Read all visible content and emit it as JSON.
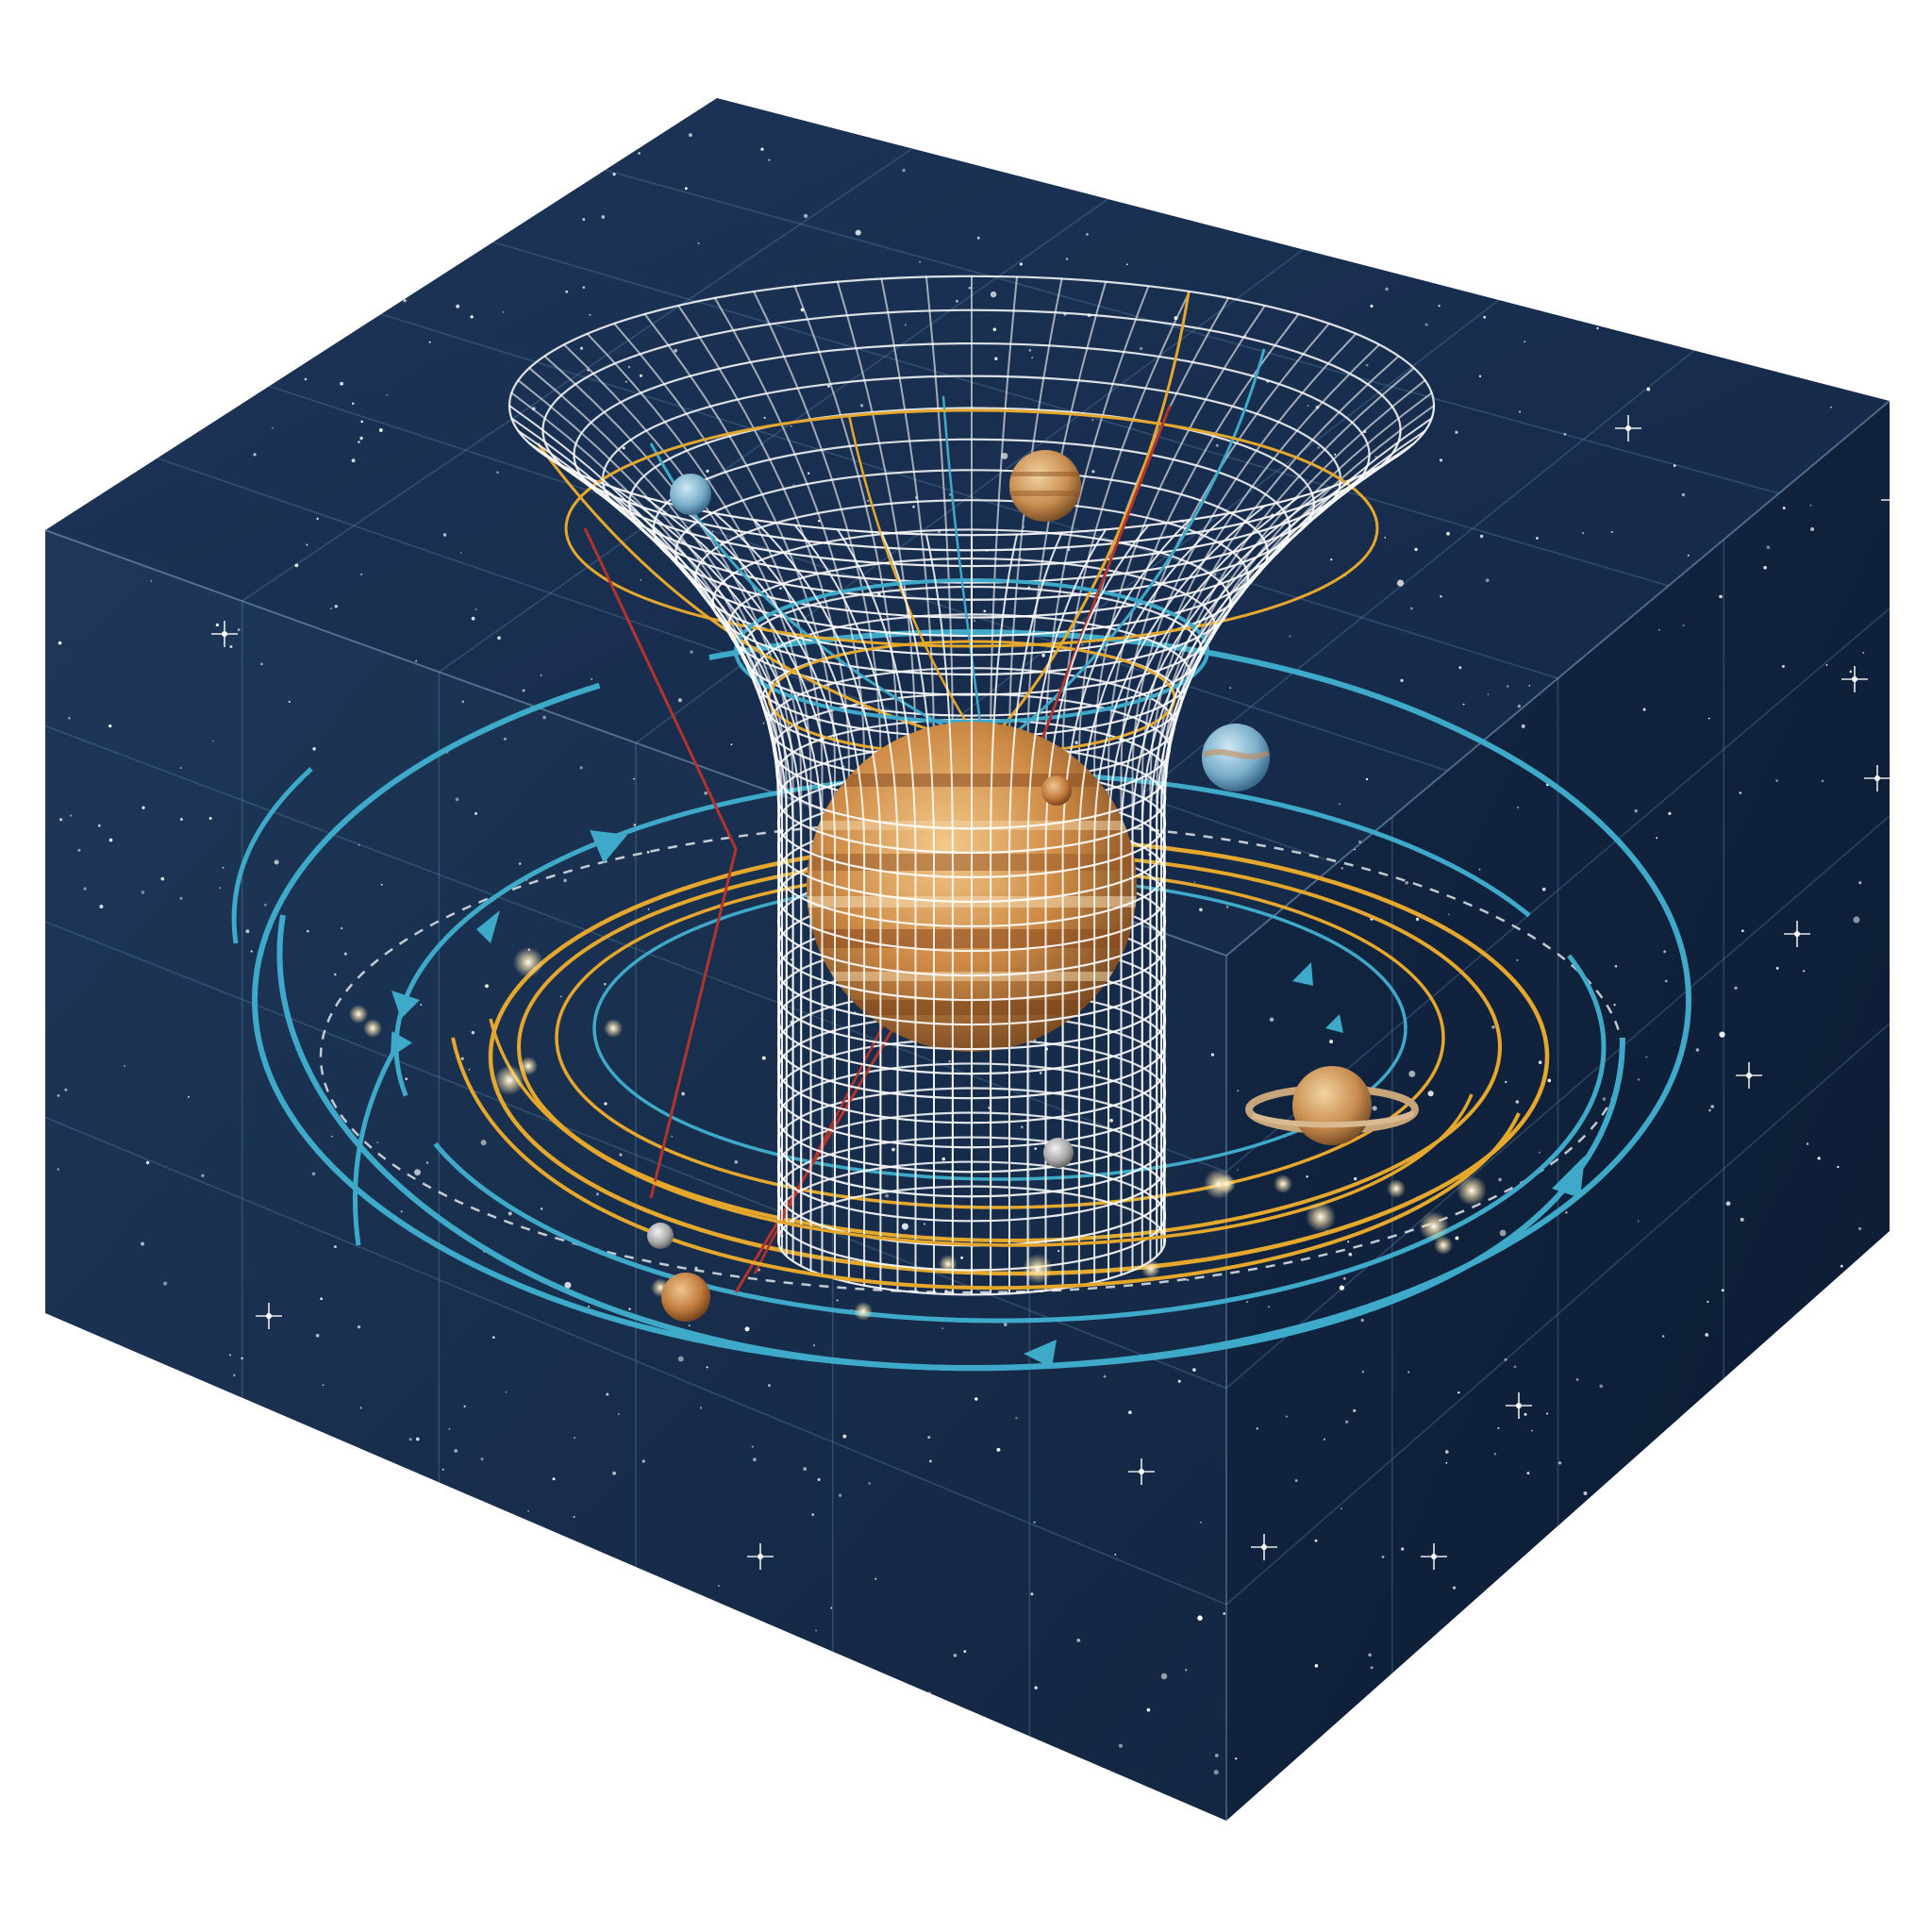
{
  "colors": {
    "background": "#ffffff",
    "space_top": "#172b4a",
    "space_left": "#1b3354",
    "space_right": "#10213d",
    "space_deep": "#0b1a31",
    "grid": "#5f86ad",
    "funnel_mesh": "#ffffff",
    "orbit_blue": "#3fa9c9",
    "orbit_gold": "#e6a82c",
    "red_line": "#b3342a",
    "planet_amber": "#c98a43",
    "star": "#ffffff"
  },
  "diagram": {
    "type": "spacetime-curvature-illustration",
    "labels": []
  },
  "central_body": {
    "icon": "gas-giant-planet-icon"
  },
  "bodies": [
    {
      "name": "blue-planet-icon"
    },
    {
      "name": "banded-planet-icon"
    },
    {
      "name": "blue-moon-icon"
    },
    {
      "name": "small-moon-icon"
    },
    {
      "name": "ringed-planet-icon"
    },
    {
      "name": "grey-moon-icon"
    },
    {
      "name": "small-grey-planet-icon"
    },
    {
      "name": "orange-planet-icon"
    }
  ],
  "orbit_styles": [
    "blue-orbit-with-arrows",
    "gold-orbit",
    "dashed-white-orbit"
  ]
}
